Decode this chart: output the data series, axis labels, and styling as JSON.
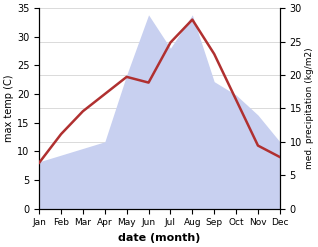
{
  "months": [
    "Jan",
    "Feb",
    "Mar",
    "Apr",
    "May",
    "Jun",
    "Jul",
    "Aug",
    "Sep",
    "Oct",
    "Nov",
    "Dec"
  ],
  "temperature": [
    8,
    13,
    17,
    20,
    23,
    22,
    29,
    33,
    27,
    19,
    11,
    9
  ],
  "precipitation": [
    7,
    8,
    9,
    10,
    20,
    29,
    24,
    29,
    19,
    17,
    14,
    10
  ],
  "temp_color": "#b03030",
  "precip_fill_color": "#c8d0f0",
  "temp_ylim": [
    0,
    35
  ],
  "precip_ylim": [
    0,
    30
  ],
  "temp_yticks": [
    0,
    5,
    10,
    15,
    20,
    25,
    30,
    35
  ],
  "precip_yticks": [
    0,
    5,
    10,
    15,
    20,
    25,
    30
  ],
  "xlabel": "date (month)",
  "ylabel_left": "max temp (C)",
  "ylabel_right": "med. precipitation (kg/m2)",
  "grid_color": "#cccccc"
}
